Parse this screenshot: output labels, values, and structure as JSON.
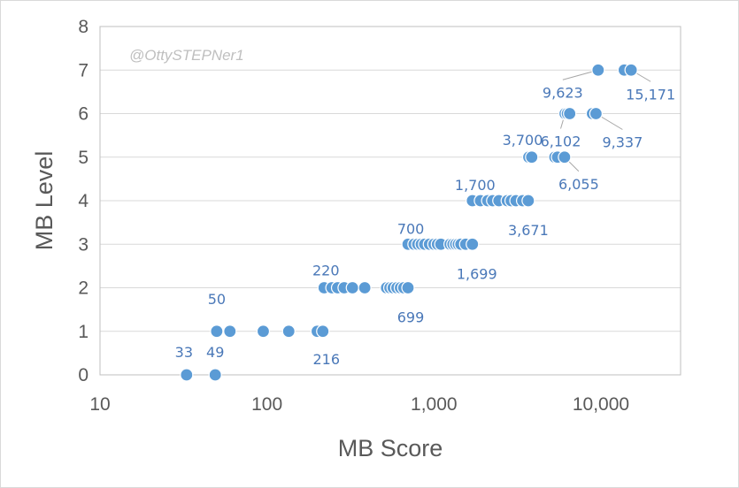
{
  "chart_data": {
    "type": "scatter",
    "title": "",
    "watermark": "@OttySTEPNer1",
    "xlabel": "MB Score",
    "ylabel": "MB Level",
    "xscale": "log",
    "xlim": [
      10,
      30000
    ],
    "ylim": [
      0,
      8
    ],
    "xticks": [
      10,
      100,
      1000,
      10000
    ],
    "xtick_labels": [
      "10",
      "100",
      "1,000",
      "10,000"
    ],
    "yticks": [
      0,
      1,
      2,
      3,
      4,
      5,
      6,
      7,
      8
    ],
    "ytick_labels": [
      "0",
      "1",
      "2",
      "3",
      "4",
      "5",
      "6",
      "7",
      "8"
    ],
    "grid": "horizontal",
    "legend": "none",
    "point_color": "#5b9bd5",
    "label_color": "#4a78b8",
    "series": [
      {
        "points": [
          {
            "x": 33,
            "y": 0
          },
          {
            "x": 49,
            "y": 0
          },
          {
            "x": 50,
            "y": 1
          },
          {
            "x": 60,
            "y": 1
          },
          {
            "x": 95,
            "y": 1
          },
          {
            "x": 135,
            "y": 1
          },
          {
            "x": 200,
            "y": 1
          },
          {
            "x": 216,
            "y": 1
          },
          {
            "x": 220,
            "y": 2
          },
          {
            "x": 245,
            "y": 2
          },
          {
            "x": 265,
            "y": 2
          },
          {
            "x": 290,
            "y": 2
          },
          {
            "x": 325,
            "y": 2
          },
          {
            "x": 385,
            "y": 2
          },
          {
            "x": 520,
            "y": 2
          },
          {
            "x": 545,
            "y": 2
          },
          {
            "x": 570,
            "y": 2
          },
          {
            "x": 600,
            "y": 2
          },
          {
            "x": 630,
            "y": 2
          },
          {
            "x": 660,
            "y": 2
          },
          {
            "x": 699,
            "y": 2
          },
          {
            "x": 700,
            "y": 3
          },
          {
            "x": 760,
            "y": 3
          },
          {
            "x": 800,
            "y": 3
          },
          {
            "x": 840,
            "y": 3
          },
          {
            "x": 880,
            "y": 3
          },
          {
            "x": 940,
            "y": 3
          },
          {
            "x": 1000,
            "y": 3
          },
          {
            "x": 1050,
            "y": 3
          },
          {
            "x": 1100,
            "y": 3
          },
          {
            "x": 1250,
            "y": 3
          },
          {
            "x": 1300,
            "y": 3
          },
          {
            "x": 1350,
            "y": 3
          },
          {
            "x": 1400,
            "y": 3
          },
          {
            "x": 1450,
            "y": 3
          },
          {
            "x": 1550,
            "y": 3
          },
          {
            "x": 1699,
            "y": 3
          },
          {
            "x": 1700,
            "y": 4
          },
          {
            "x": 1900,
            "y": 4
          },
          {
            "x": 2100,
            "y": 4
          },
          {
            "x": 2250,
            "y": 4
          },
          {
            "x": 2450,
            "y": 4
          },
          {
            "x": 2750,
            "y": 4
          },
          {
            "x": 2900,
            "y": 4
          },
          {
            "x": 3100,
            "y": 4
          },
          {
            "x": 3400,
            "y": 4
          },
          {
            "x": 3671,
            "y": 4
          },
          {
            "x": 3700,
            "y": 5
          },
          {
            "x": 3850,
            "y": 5
          },
          {
            "x": 5300,
            "y": 5
          },
          {
            "x": 5500,
            "y": 5
          },
          {
            "x": 6055,
            "y": 5
          },
          {
            "x": 6102,
            "y": 6
          },
          {
            "x": 6300,
            "y": 6
          },
          {
            "x": 6500,
            "y": 6
          },
          {
            "x": 8900,
            "y": 6
          },
          {
            "x": 9337,
            "y": 6
          },
          {
            "x": 9623,
            "y": 7
          },
          {
            "x": 13800,
            "y": 7
          },
          {
            "x": 15171,
            "y": 7
          }
        ]
      }
    ],
    "annotations": [
      {
        "text": "33",
        "x": 33,
        "y": 0
      },
      {
        "text": "49",
        "x": 49,
        "y": 0
      },
      {
        "text": "50",
        "x": 50,
        "y": 1
      },
      {
        "text": "220",
        "x": 220,
        "y": 2
      },
      {
        "text": "216",
        "x": 216,
        "y": 1
      },
      {
        "text": "700",
        "x": 700,
        "y": 3
      },
      {
        "text": "699",
        "x": 699,
        "y": 2
      },
      {
        "text": "1,700",
        "x": 1700,
        "y": 4
      },
      {
        "text": "1,699",
        "x": 1699,
        "y": 3
      },
      {
        "text": "3,700",
        "x": 3700,
        "y": 5
      },
      {
        "text": "3,671",
        "x": 3671,
        "y": 4
      },
      {
        "text": "6,102",
        "x": 6102,
        "y": 6
      },
      {
        "text": "6,055",
        "x": 6055,
        "y": 5
      },
      {
        "text": "9,623",
        "x": 9623,
        "y": 7
      },
      {
        "text": "9,337",
        "x": 9337,
        "y": 6
      },
      {
        "text": "15,171",
        "x": 15171,
        "y": 7
      }
    ]
  }
}
